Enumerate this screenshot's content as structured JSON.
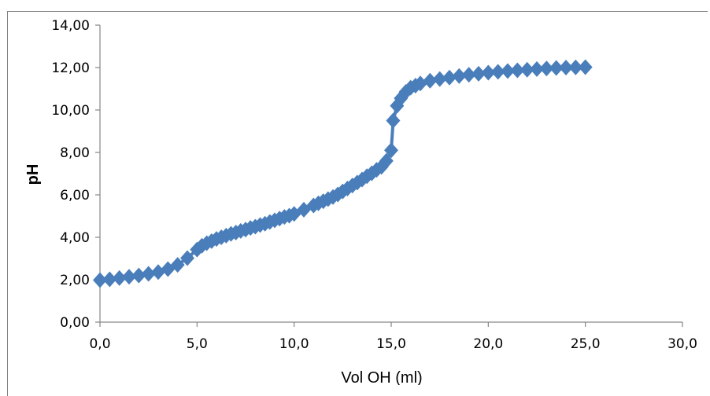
{
  "chart_data": {
    "type": "scatter",
    "title": "",
    "xlabel": "Vol OH (ml)",
    "ylabel": "pH",
    "xlim": [
      0,
      30
    ],
    "ylim": [
      0,
      14
    ],
    "x_ticks": [
      "0,0",
      "5,0",
      "10,0",
      "15,0",
      "20,0",
      "25,0",
      "30,0"
    ],
    "y_ticks": [
      "0,00",
      "2,00",
      "4,00",
      "6,00",
      "8,00",
      "10,00",
      "12,00",
      "14,00"
    ],
    "grid": false,
    "legend": "none",
    "marker": "diamond",
    "color": "#4a7ebb",
    "series": [
      {
        "x": [
          0,
          0.5,
          1,
          1.5,
          2,
          2.5,
          3,
          3.5,
          4,
          4.5,
          5,
          5.25,
          5.5,
          5.75,
          6,
          6.25,
          6.5,
          6.75,
          7,
          7.25,
          7.5,
          7.75,
          8,
          8.25,
          8.5,
          8.75,
          9,
          9.25,
          9.5,
          9.75,
          10,
          10.5,
          11,
          11.25,
          11.5,
          11.75,
          12,
          12.25,
          12.5,
          12.75,
          13,
          13.25,
          13.5,
          13.75,
          14,
          14.25,
          14.5,
          14.75,
          15,
          15.1,
          15.3,
          15.5,
          15.75,
          16,
          16.25,
          16.5,
          17,
          17.5,
          18,
          18.5,
          19,
          19.5,
          20,
          20.5,
          21,
          21.5,
          22,
          22.5,
          23,
          23.5,
          24,
          24.5,
          25
        ],
        "y": [
          1.98,
          2.02,
          2.08,
          2.14,
          2.2,
          2.28,
          2.36,
          2.5,
          2.7,
          3.02,
          3.42,
          3.6,
          3.72,
          3.82,
          3.92,
          4.0,
          4.08,
          4.16,
          4.22,
          4.3,
          4.36,
          4.44,
          4.5,
          4.58,
          4.64,
          4.72,
          4.8,
          4.88,
          4.96,
          5.02,
          5.1,
          5.3,
          5.5,
          5.6,
          5.7,
          5.8,
          5.9,
          6.02,
          6.16,
          6.3,
          6.44,
          6.58,
          6.72,
          6.88,
          7.02,
          7.18,
          7.32,
          7.6,
          8.1,
          9.5,
          10.2,
          10.55,
          10.85,
          11.05,
          11.15,
          11.25,
          11.38,
          11.46,
          11.53,
          11.6,
          11.66,
          11.71,
          11.76,
          11.8,
          11.84,
          11.87,
          11.9,
          11.93,
          11.96,
          11.98,
          12.0,
          12.01,
          12.02
        ]
      }
    ]
  }
}
